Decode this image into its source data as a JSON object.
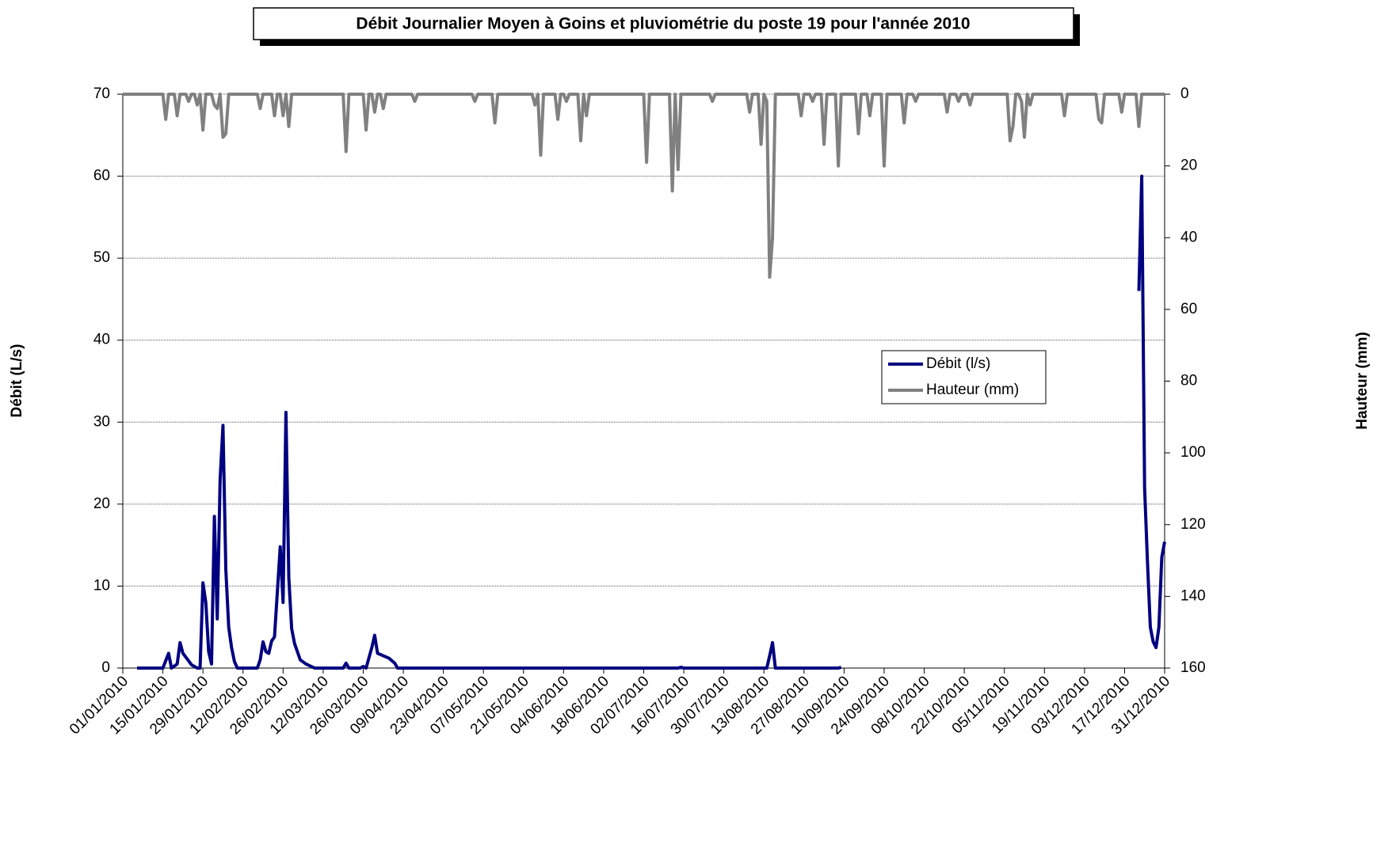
{
  "chart_data": {
    "type": "line",
    "title": "Débit Journalier Moyen à Goins et pluviométrie du poste 19 pour l'année 2010",
    "ylabel": "Débit (L/s)",
    "y2label": "Hauteur (mm)",
    "xlim": [
      "01/01/2010",
      "31/12/2010"
    ],
    "xticks": [
      "01/01/2010",
      "15/01/2010",
      "29/01/2010",
      "12/02/2010",
      "26/02/2010",
      "12/03/2010",
      "26/03/2010",
      "09/04/2010",
      "23/04/2010",
      "07/05/2010",
      "21/05/2010",
      "04/06/2010",
      "18/06/2010",
      "02/07/2010",
      "16/07/2010",
      "30/07/2010",
      "13/08/2010",
      "27/08/2010",
      "10/09/2010",
      "24/09/2010",
      "08/10/2010",
      "22/10/2010",
      "05/11/2010",
      "19/11/2010",
      "03/12/2010",
      "17/12/2010",
      "31/12/2010"
    ],
    "ylim": [
      0,
      70
    ],
    "yticks": [
      0,
      10,
      20,
      30,
      40,
      50,
      60,
      70
    ],
    "y2lim": [
      160,
      0
    ],
    "y2ticks": [
      0,
      20,
      40,
      60,
      80,
      100,
      120,
      140,
      160
    ],
    "grid": true,
    "legend": "center-right",
    "series": [
      {
        "name": "Débit (l/s)",
        "color": "#000080",
        "axis": "y",
        "x": [
          "06/01/2010",
          "15/01/2010",
          "17/01/2010",
          "18/01/2010",
          "20/01/2010",
          "21/01/2010",
          "22/01/2010",
          "25/01/2010",
          "27/01/2010",
          "28/01/2010",
          "29/01/2010",
          "30/01/2010",
          "31/01/2010",
          "01/02/2010",
          "02/02/2010",
          "03/02/2010",
          "04/02/2010",
          "05/02/2010",
          "06/02/2010",
          "07/02/2010",
          "08/02/2010",
          "09/02/2010",
          "10/02/2010",
          "17/02/2010",
          "18/02/2010",
          "19/02/2010",
          "20/02/2010",
          "21/02/2010",
          "22/02/2010",
          "23/02/2010",
          "25/02/2010",
          "26/02/2010",
          "27/02/2010",
          "28/02/2010",
          "01/03/2010",
          "02/03/2010",
          "04/03/2010",
          "06/03/2010",
          "09/03/2010",
          "19/03/2010",
          "20/03/2010",
          "21/03/2010",
          "25/03/2010",
          "26/03/2010",
          "27/03/2010",
          "29/03/2010",
          "30/03/2010",
          "31/03/2010",
          "02/04/2010",
          "04/04/2010",
          "06/04/2010",
          "07/04/2010",
          "14/07/2010",
          "15/07/2010",
          "16/07/2010",
          "14/08/2010",
          "15/08/2010",
          "16/08/2010",
          "17/08/2010",
          "08/09/2010",
          "09/09/2010",
          "28/10/2010",
          "22/12/2010",
          "23/12/2010",
          "24/12/2010",
          "25/12/2010",
          "26/12/2010",
          "27/12/2010",
          "28/12/2010",
          "29/12/2010",
          "30/12/2010",
          "31/12/2010"
        ],
        "values": [
          0,
          0,
          1.8,
          0,
          0.5,
          3.1,
          1.8,
          0.4,
          0,
          0,
          10.4,
          8,
          2,
          0.5,
          18.5,
          6,
          23,
          29.6,
          12,
          5,
          2.5,
          0.8,
          0,
          0,
          1,
          3.2,
          2,
          1.8,
          3.3,
          3.8,
          14.8,
          8,
          31.2,
          11,
          4.8,
          3,
          1,
          0.5,
          0,
          0,
          0.6,
          0,
          0,
          0.2,
          0,
          2.5,
          4,
          1.8,
          1.5,
          1.2,
          0.6,
          0,
          0,
          0.1,
          0,
          0,
          1.5,
          3.1,
          0,
          0,
          0.1,
          null,
          46,
          60,
          22,
          13,
          5,
          3.2,
          2.5,
          5,
          13.5,
          15.4
        ]
      },
      {
        "name": "Hauteur (mm)",
        "color": "#808080",
        "axis": "y2",
        "x": [
          "01/01/2010",
          "15/01/2010",
          "16/01/2010",
          "17/01/2010",
          "19/01/2010",
          "20/01/2010",
          "21/01/2010",
          "23/01/2010",
          "24/01/2010",
          "25/01/2010",
          "26/01/2010",
          "27/01/2010",
          "28/01/2010",
          "29/01/2010",
          "30/01/2010",
          "01/02/2010",
          "02/02/2010",
          "03/02/2010",
          "04/02/2010",
          "05/02/2010",
          "06/02/2010",
          "07/02/2010",
          "17/02/2010",
          "18/02/2010",
          "19/02/2010",
          "22/02/2010",
          "23/02/2010",
          "24/02/2010",
          "25/02/2010",
          "26/02/2010",
          "27/02/2010",
          "28/02/2010",
          "01/03/2010",
          "19/03/2010",
          "20/03/2010",
          "21/03/2010",
          "26/03/2010",
          "27/03/2010",
          "28/03/2010",
          "29/03/2010",
          "30/03/2010",
          "31/03/2010",
          "01/04/2010",
          "02/04/2010",
          "03/04/2010",
          "12/04/2010",
          "13/04/2010",
          "14/04/2010",
          "03/05/2010",
          "04/05/2010",
          "05/05/2010",
          "10/05/2010",
          "11/05/2010",
          "12/05/2010",
          "24/05/2010",
          "25/05/2010",
          "26/05/2010",
          "27/05/2010",
          "28/05/2010",
          "01/06/2010",
          "02/06/2010",
          "03/06/2010",
          "04/06/2010",
          "05/06/2010",
          "06/06/2010",
          "09/06/2010",
          "10/06/2010",
          "11/06/2010",
          "12/06/2010",
          "13/06/2010",
          "02/07/2010",
          "03/07/2010",
          "04/07/2010",
          "11/07/2010",
          "12/07/2010",
          "13/07/2010",
          "14/07/2010",
          "15/07/2010",
          "25/07/2010",
          "26/07/2010",
          "27/07/2010",
          "07/08/2010",
          "08/08/2010",
          "09/08/2010",
          "11/08/2010",
          "12/08/2010",
          "13/08/2010",
          "14/08/2010",
          "15/08/2010",
          "16/08/2010",
          "17/08/2010",
          "25/08/2010",
          "26/08/2010",
          "27/08/2010",
          "29/08/2010",
          "30/08/2010",
          "31/08/2010",
          "02/09/2010",
          "03/09/2010",
          "04/09/2010",
          "07/09/2010",
          "08/09/2010",
          "09/09/2010",
          "14/09/2010",
          "15/09/2010",
          "16/09/2010",
          "18/09/2010",
          "19/09/2010",
          "20/09/2010",
          "23/09/2010",
          "24/09/2010",
          "25/09/2010",
          "30/09/2010",
          "01/10/2010",
          "02/10/2010",
          "04/10/2010",
          "05/10/2010",
          "06/10/2010",
          "15/10/2010",
          "16/10/2010",
          "17/10/2010",
          "19/10/2010",
          "20/10/2010",
          "21/10/2010",
          "23/10/2010",
          "24/10/2010",
          "25/10/2010",
          "06/11/2010",
          "07/11/2010",
          "08/11/2010",
          "09/11/2010",
          "10/11/2010",
          "11/11/2010",
          "12/11/2010",
          "13/11/2010",
          "14/11/2010",
          "15/11/2010",
          "25/11/2010",
          "26/11/2010",
          "27/11/2010",
          "07/12/2010",
          "08/12/2010",
          "09/12/2010",
          "10/12/2010",
          "15/12/2010",
          "16/12/2010",
          "17/12/2010",
          "21/12/2010",
          "22/12/2010",
          "23/12/2010",
          "31/12/2010"
        ],
        "values": [
          0,
          0,
          7,
          0,
          0,
          6,
          0,
          0,
          2,
          0,
          0,
          3,
          0,
          10,
          0,
          0,
          3,
          4,
          0,
          12,
          11,
          0,
          0,
          4,
          0,
          0,
          6,
          0,
          0,
          6,
          0,
          9,
          0,
          0,
          16,
          0,
          0,
          10,
          0,
          0,
          5,
          0,
          0,
          4,
          0,
          0,
          2,
          0,
          0,
          2,
          0,
          0,
          8,
          0,
          0,
          3,
          0,
          17,
          0,
          0,
          7,
          0,
          0,
          2,
          0,
          0,
          13,
          0,
          6,
          0,
          0,
          19,
          0,
          0,
          27,
          0,
          21,
          0,
          0,
          2,
          0,
          0,
          5,
          0,
          0,
          14,
          0,
          2,
          51,
          40,
          0,
          0,
          6,
          0,
          0,
          2,
          0,
          0,
          14,
          0,
          0,
          20,
          0,
          0,
          11,
          0,
          0,
          6,
          0,
          0,
          20,
          0,
          0,
          8,
          0,
          0,
          2,
          0,
          0,
          5,
          0,
          0,
          2,
          0,
          0,
          3,
          0,
          0,
          13,
          9,
          0,
          0,
          2,
          12,
          0,
          3,
          0,
          0,
          6,
          0,
          0,
          7,
          8,
          0,
          0,
          5,
          0,
          0,
          9,
          0,
          0
        ]
      }
    ]
  }
}
